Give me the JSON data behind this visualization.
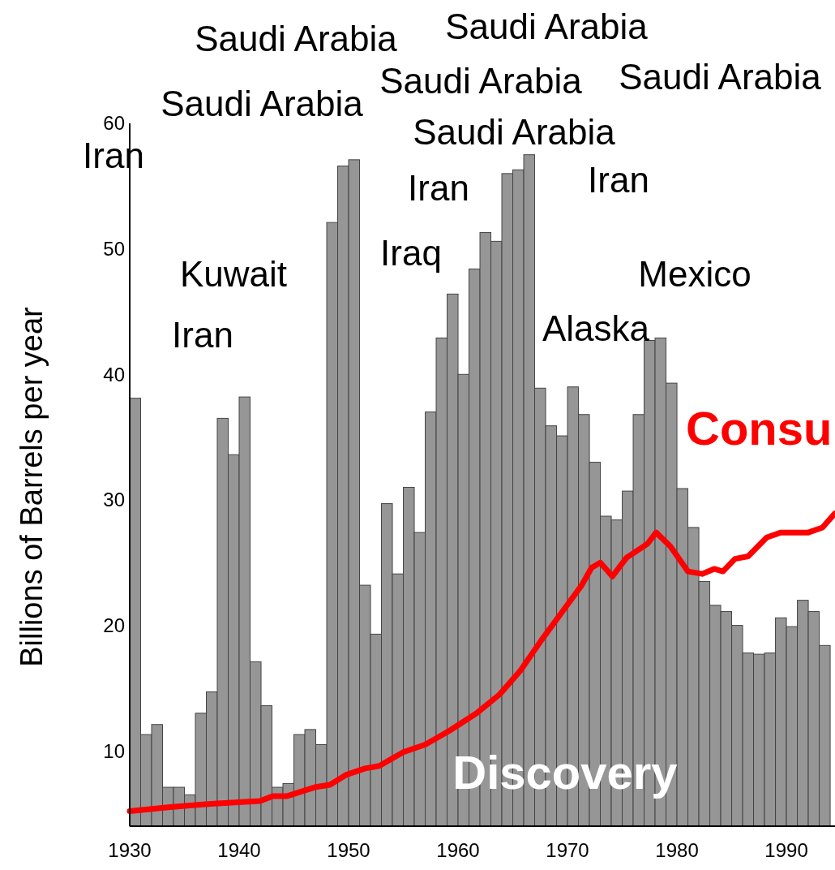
{
  "chart_data": {
    "type": "bar",
    "ylabel": "Billions of Barrels per year",
    "xlim": [
      1930,
      1994.44
    ],
    "ylim": [
      4,
      60
    ],
    "xticks": [
      1930,
      1940,
      1950,
      1960,
      1970,
      1980,
      1990
    ],
    "yticks": [
      10,
      20,
      30,
      40,
      50,
      60
    ],
    "grid": false,
    "legend": false,
    "series": [
      {
        "name": "Discovery",
        "color": "#969696",
        "x": [
          1930.5,
          1931.5,
          1932.5,
          1933.5,
          1934.5,
          1935.5,
          1936.5,
          1937.5,
          1938.5,
          1939.5,
          1940.5,
          1941.5,
          1942.5,
          1943.5,
          1944.5,
          1945.5,
          1946.5,
          1947.5,
          1948.5,
          1949.5,
          1950.5,
          1951.5,
          1952.5,
          1953.5,
          1954.5,
          1955.5,
          1956.5,
          1957.5,
          1958.5,
          1959.5,
          1960.5,
          1961.5,
          1962.5,
          1963.5,
          1964.5,
          1965.5,
          1966.5,
          1967.5,
          1968.5,
          1969.5,
          1970.5,
          1971.5,
          1972.5,
          1973.5,
          1974.5,
          1975.5,
          1976.5,
          1977.5,
          1978.5,
          1979.5,
          1980.5,
          1981.5,
          1982.5,
          1983.5,
          1984.5,
          1985.5,
          1986.5,
          1987.5,
          1988.5,
          1989.5,
          1990.5,
          1991.5,
          1992.5,
          1993.5
        ],
        "values": [
          38.1,
          11.3,
          12.1,
          7.1,
          7.1,
          6.5,
          13.0,
          14.7,
          36.5,
          33.6,
          38.2,
          17.1,
          13.6,
          7.1,
          7.4,
          11.3,
          11.7,
          10.5,
          52.1,
          56.6,
          57.1,
          23.2,
          19.3,
          29.7,
          24.1,
          31.0,
          27.4,
          37.0,
          42.9,
          46.4,
          40.0,
          48.4,
          51.3,
          50.6,
          56.0,
          56.3,
          57.5,
          38.9,
          35.9,
          35.1,
          39.0,
          36.8,
          33.0,
          28.7,
          28.4,
          30.7,
          36.8,
          42.7,
          42.9,
          39.3,
          30.9,
          27.8,
          23.5,
          21.6,
          21.1,
          20.0,
          17.8,
          17.7,
          17.8,
          20.6,
          19.9,
          22.0,
          21.1,
          18.4
        ]
      },
      {
        "name": "Consu",
        "type": "line",
        "color": "#ff0000",
        "x": [
          1930,
          1933.5,
          1937.7,
          1941.9,
          1943.1,
          1944.4,
          1946.9,
          1948.3,
          1949.8,
          1951.5,
          1952.8,
          1955.0,
          1957.0,
          1959.2,
          1961.7,
          1963.8,
          1965.7,
          1967.6,
          1969.7,
          1971.3,
          1972.2,
          1973.0,
          1974.1,
          1975.4,
          1977.3,
          1978.1,
          1979.4,
          1981.0,
          1982.3,
          1983.4,
          1984.2,
          1985.3,
          1986.5,
          1988.2,
          1989.5,
          1992.0,
          1993.3,
          1994.4
        ],
        "values": [
          5.2,
          5.5,
          5.8,
          6.0,
          6.4,
          6.4,
          7.1,
          7.3,
          8.1,
          8.6,
          8.8,
          9.9,
          10.5,
          11.6,
          13.0,
          14.5,
          16.4,
          18.8,
          21.3,
          23.2,
          24.6,
          25.0,
          23.9,
          25.4,
          26.5,
          27.4,
          26.3,
          24.3,
          24.1,
          24.5,
          24.3,
          25.3,
          25.5,
          27.0,
          27.4,
          27.4,
          27.8,
          28.9
        ]
      }
    ],
    "annotations": [
      "Iran",
      "Saudi Arabia",
      "Saudi Arabia",
      "Kuwait",
      "Iran",
      "Saudi Arabia",
      "Saudi Arabia",
      "Saudi Arabia",
      "Iran",
      "Iraq",
      "Iran",
      "Saudi Arabia",
      "Mexico",
      "Alaska"
    ]
  }
}
